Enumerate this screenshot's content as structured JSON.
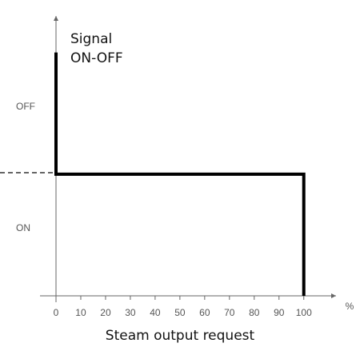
{
  "chart_data": {
    "type": "line",
    "y_axis_label": [
      "Signal",
      "ON-OFF"
    ],
    "x_axis_label": "Steam output request",
    "x_unit": "%",
    "x": [
      0,
      0,
      100,
      100
    ],
    "values": [
      2,
      1,
      1,
      0
    ],
    "color": "#000000",
    "xlim": [
      0,
      113
    ],
    "ylim": [
      0,
      2.3
    ],
    "xticks": [
      0,
      10,
      20,
      30,
      40,
      50,
      60,
      70,
      80,
      90,
      100
    ],
    "yticks": [
      {
        "value": 1.5,
        "label": "OFF"
      },
      {
        "value": 0.5,
        "label": "ON"
      }
    ],
    "grid": false
  }
}
